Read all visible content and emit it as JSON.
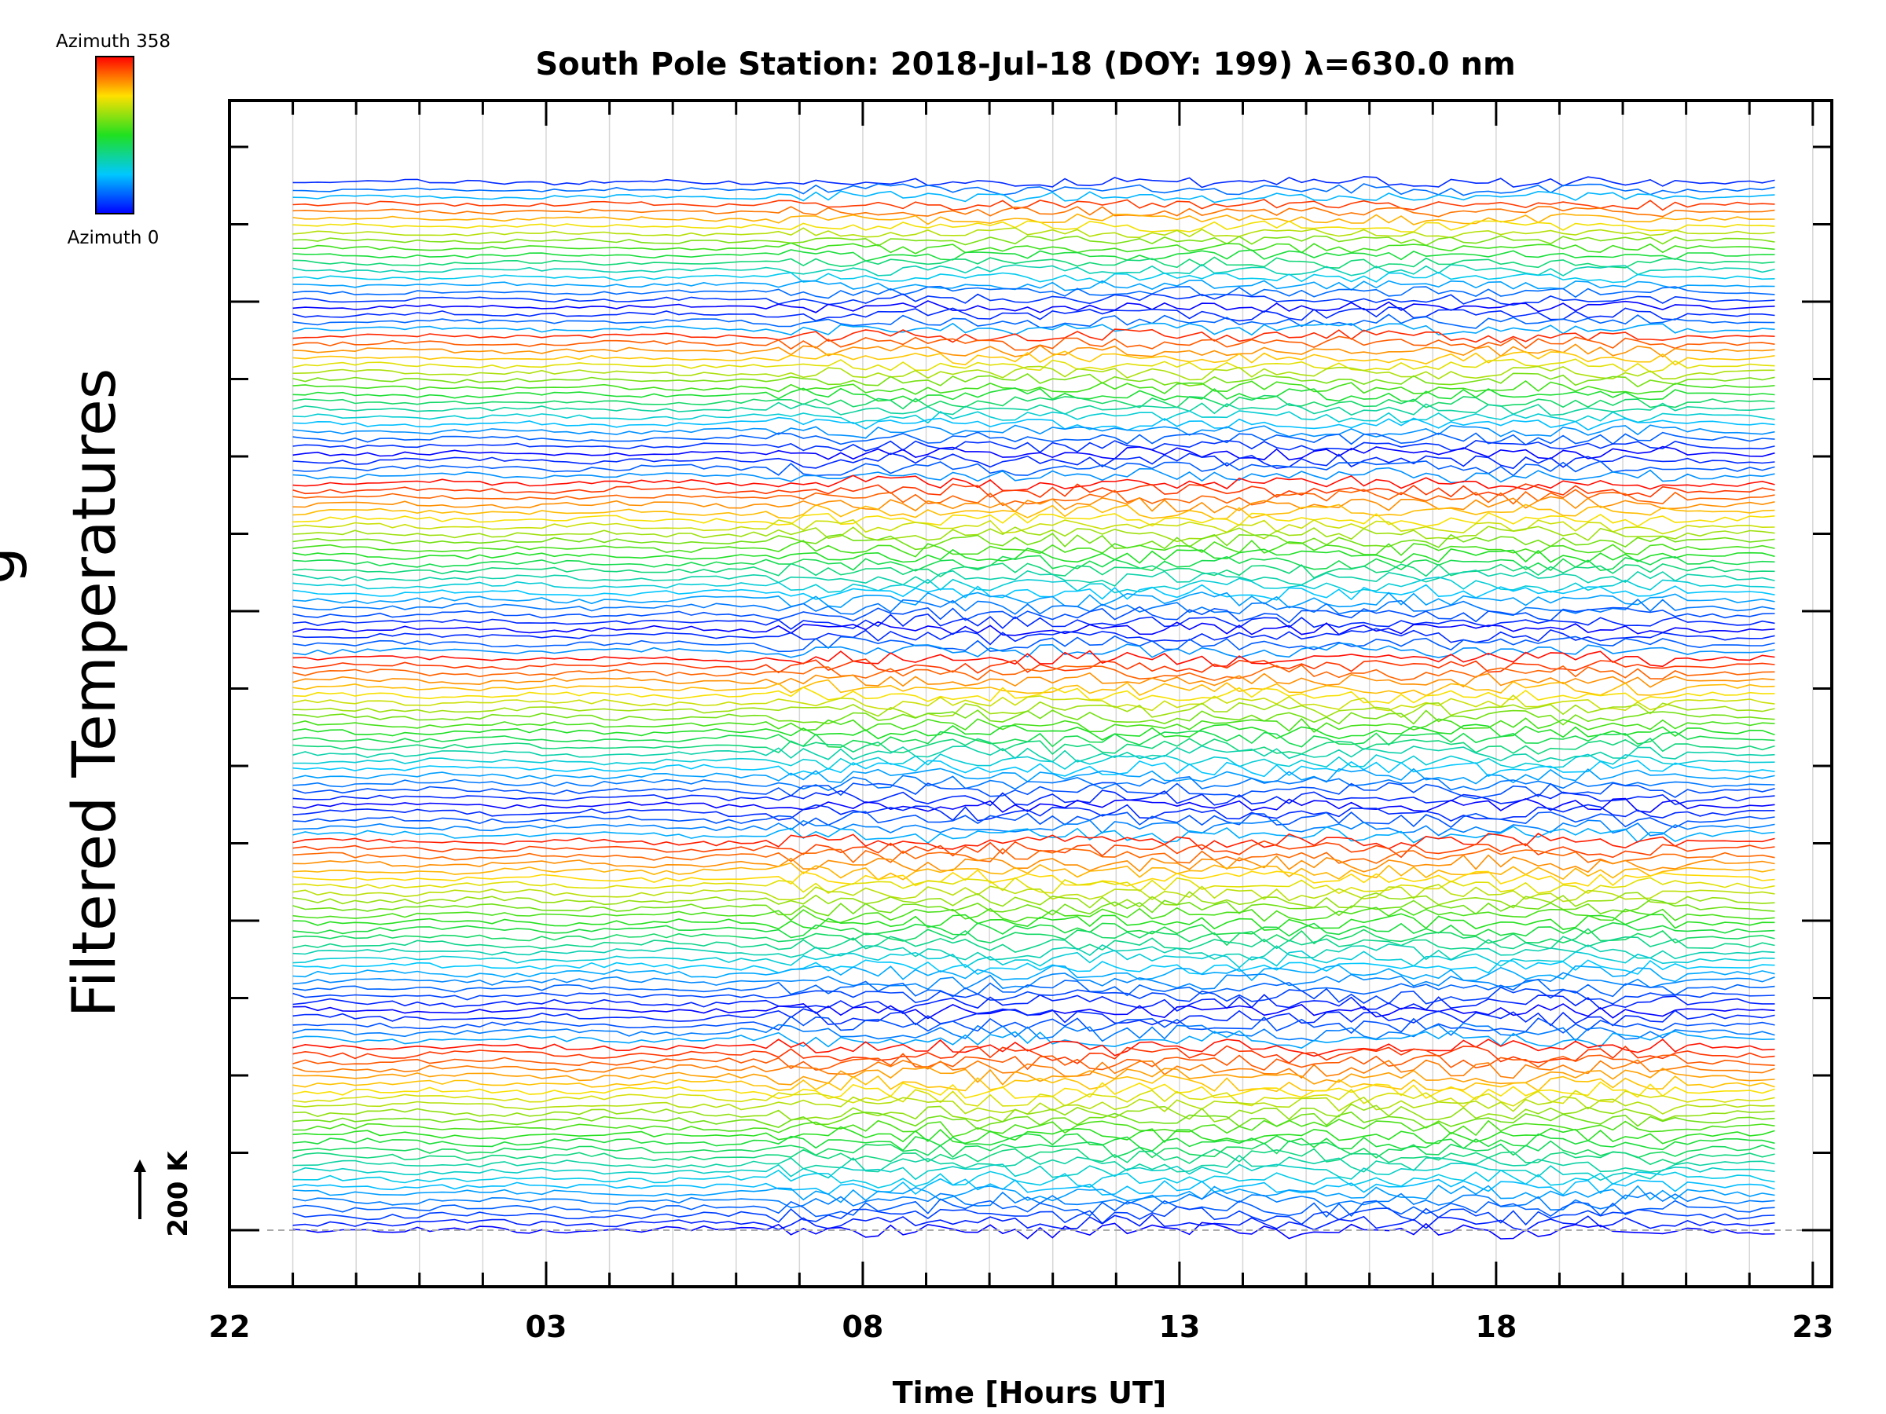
{
  "chart_data": {
    "type": "line",
    "title": "South Pole Station: 2018-Jul-18 (DOY: 199) λ=630.0 nm",
    "xlabel": "Time [Hours UT]",
    "ylabel": "Filtered Temperatures",
    "x_ticks": [
      "22",
      "03",
      "08",
      "13",
      "18",
      "23"
    ],
    "x_tick_hours": [
      22,
      27,
      32,
      37,
      42,
      47
    ],
    "xlim_hours": [
      22,
      47.3
    ],
    "data_start_hour": 23.0,
    "data_end_hour": 46.4,
    "samples_per_trace": 120,
    "scale_bar_label": "200 K",
    "colorbar": {
      "top_label": "Azimuth 358",
      "bottom_label": "Azimuth 0",
      "azimuth_range": [
        0,
        358
      ]
    },
    "trace_groups": [
      {
        "count": 18,
        "offset_rows": 1,
        "amplitude": 0.22,
        "activity_hours": [
          30.5,
          45.0
        ]
      },
      {
        "count": 20,
        "offset_rows": 1,
        "amplitude": 0.26,
        "activity_hours": [
          30.5,
          45.0
        ]
      },
      {
        "count": 24,
        "offset_rows": 1,
        "amplitude": 0.3,
        "activity_hours": [
          30.5,
          45.0
        ]
      },
      {
        "count": 24,
        "offset_rows": 1,
        "amplitude": 0.3,
        "activity_hours": [
          30.5,
          45.0
        ]
      },
      {
        "count": 28,
        "offset_rows": 1,
        "amplitude": 0.32,
        "activity_hours": [
          30.5,
          45.0
        ]
      },
      {
        "count": 30,
        "offset_rows": 1,
        "amplitude": 0.34,
        "activity_hours": [
          30.5,
          45.0
        ]
      }
    ],
    "grid": true,
    "note": "Stacked keogram-style traces; each trace is one azimuth bin coloured by azimuth (blue=0, red=358), vertically offset for display."
  }
}
